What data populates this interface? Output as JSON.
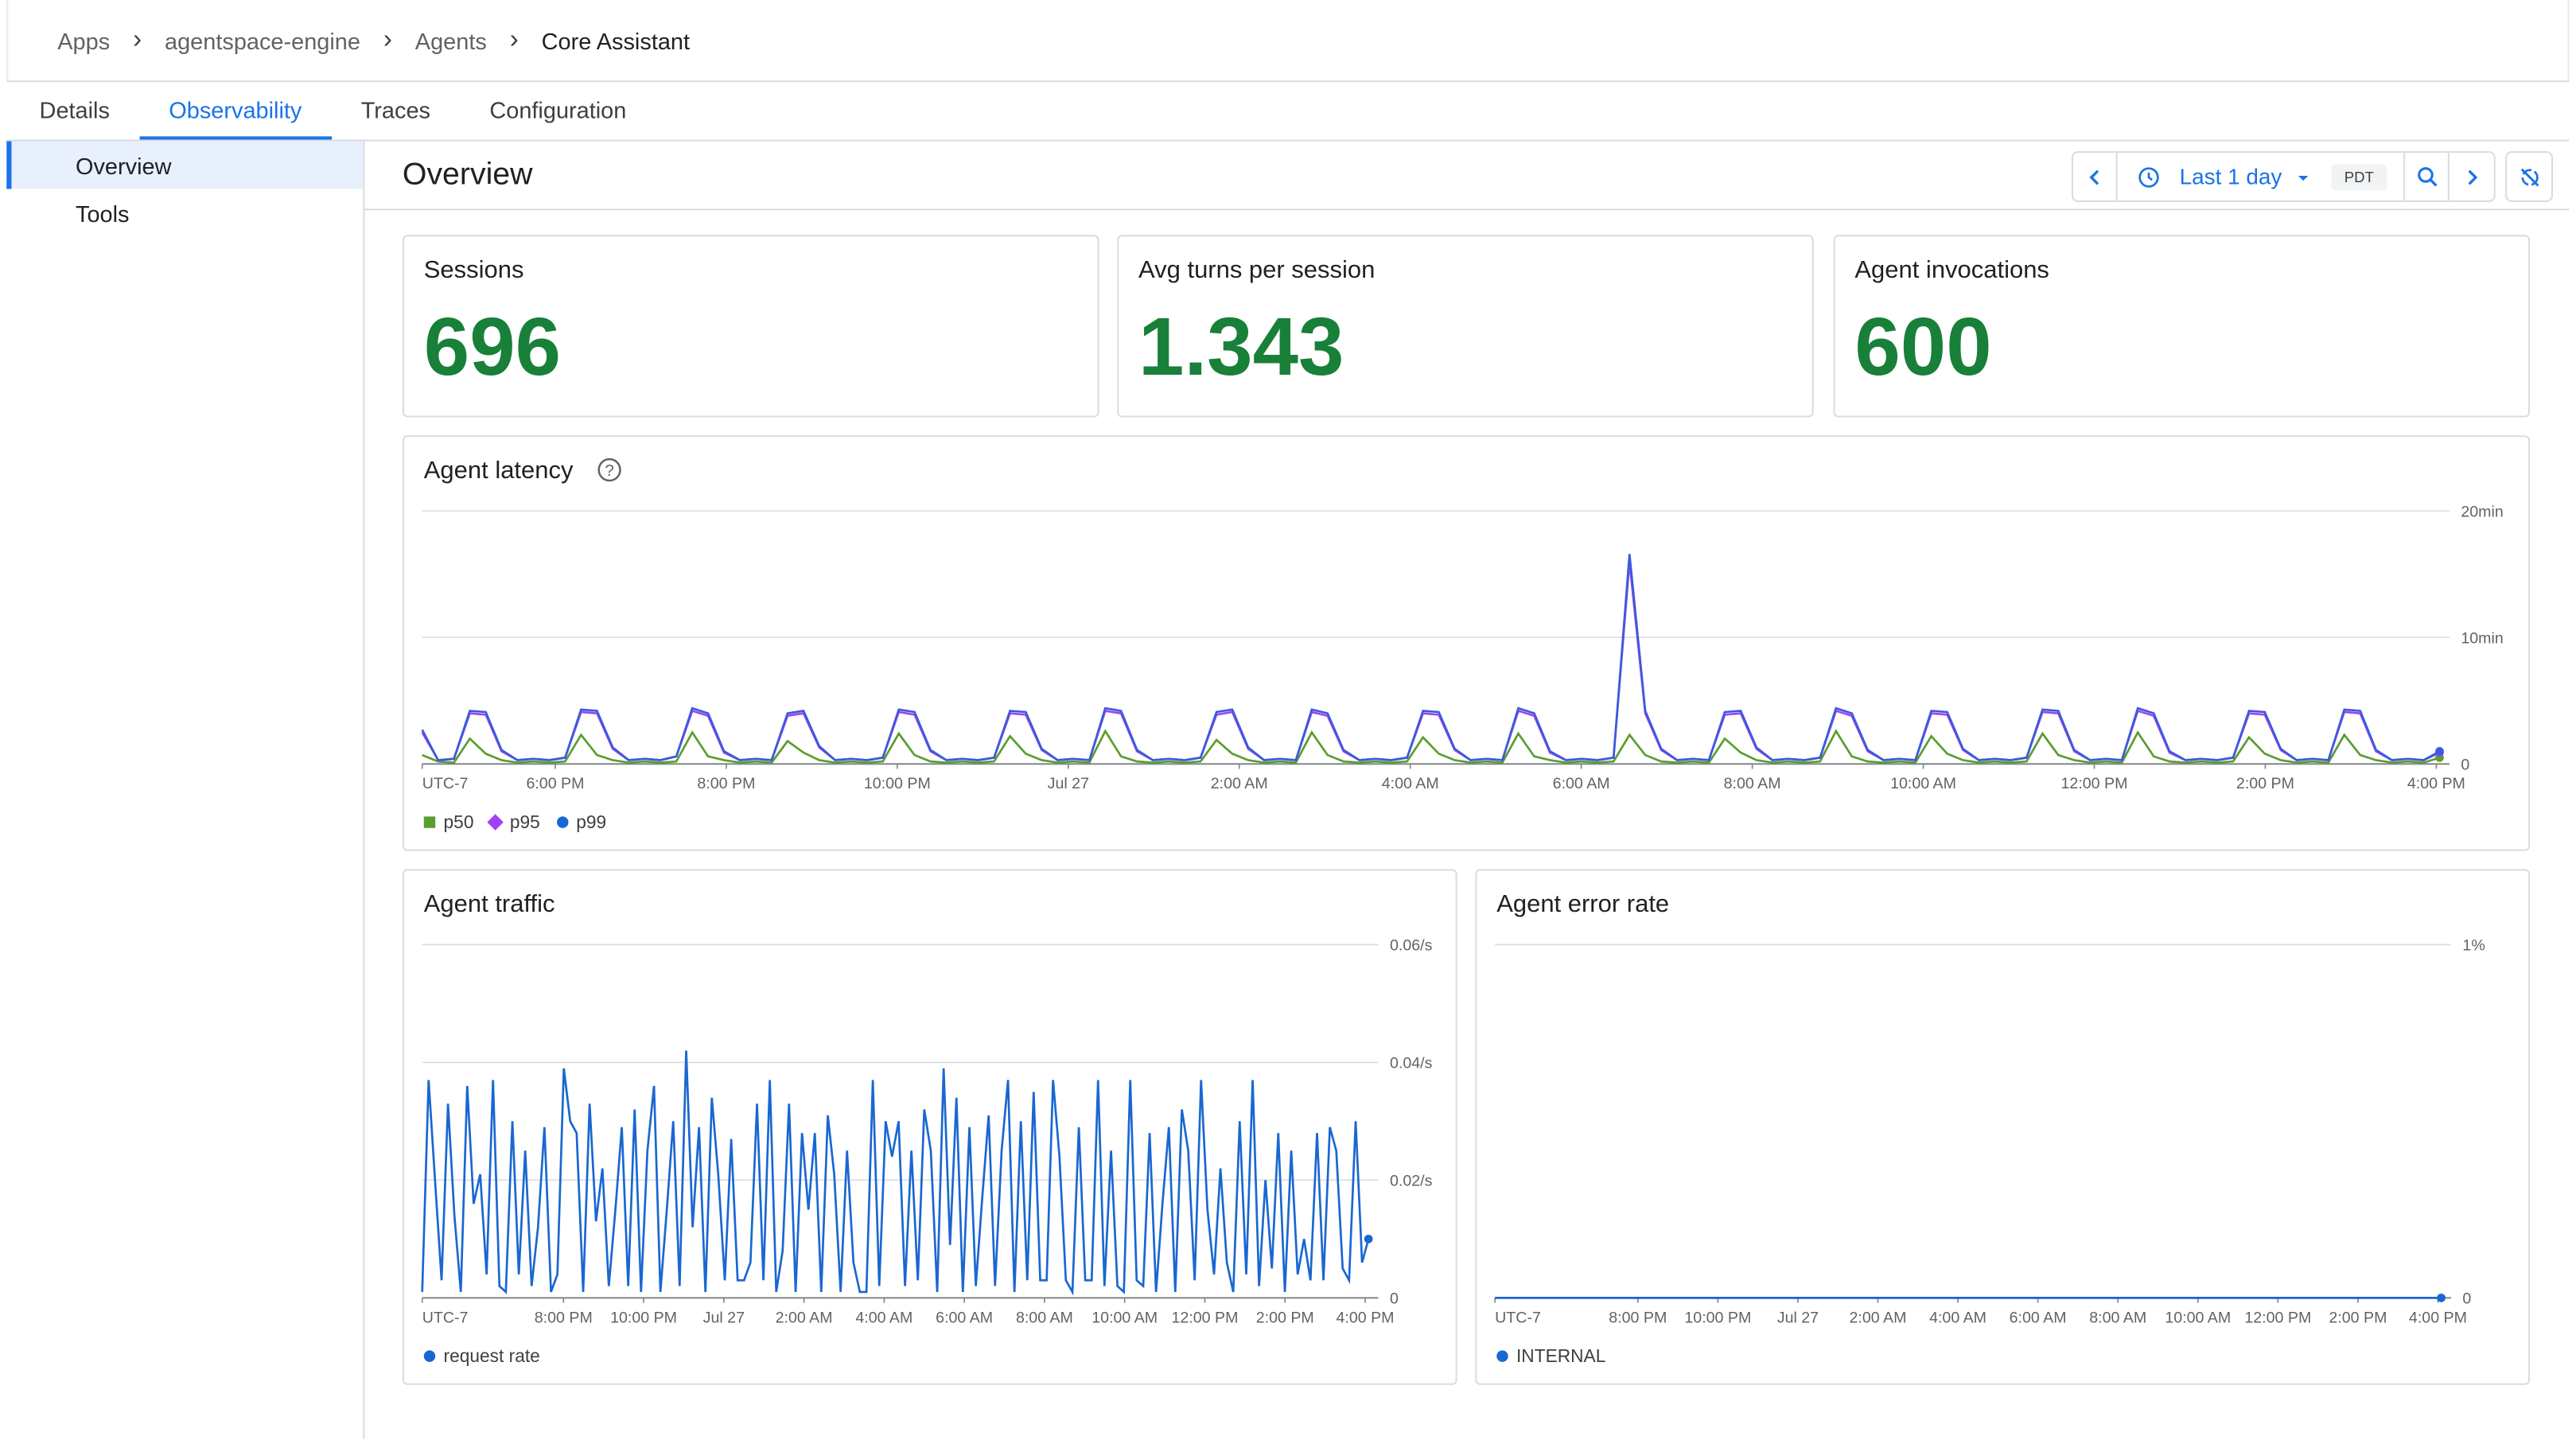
{
  "breadcrumb": [
    "Apps",
    "agentspace-engine",
    "Agents",
    "Core Assistant"
  ],
  "tabs": [
    "Details",
    "Observability",
    "Traces",
    "Configuration"
  ],
  "active_tab": "Observability",
  "sidebar": {
    "items": [
      "Overview",
      "Tools"
    ],
    "active": "Overview"
  },
  "page_title": "Overview",
  "toolbar": {
    "range_label": "Last 1 day",
    "timezone": "PDT",
    "icons": [
      "chevron-left-icon",
      "clock-icon",
      "caret-down-icon",
      "zoom-icon",
      "chevron-right-icon",
      "sync-off-icon"
    ]
  },
  "metrics": [
    {
      "label": "Sessions",
      "value": "696"
    },
    {
      "label": "Avg turns per session",
      "value": "1.343"
    },
    {
      "label": "Agent invocations",
      "value": "600"
    }
  ],
  "colors": {
    "accent": "#1a73e8",
    "metric_value": "#188038",
    "p50": "#5a9e2f",
    "p95": "#a142f4",
    "p99": "#3a5bdb",
    "traffic": "#1967d2"
  },
  "chart_data": [
    {
      "type": "line",
      "title": "Agent latency",
      "xticks": [
        "UTC-7",
        "6:00 PM",
        "8:00 PM",
        "10:00 PM",
        "Jul 27",
        "2:00 AM",
        "4:00 AM",
        "6:00 AM",
        "8:00 AM",
        "10:00 AM",
        "12:00 PM",
        "2:00 PM",
        "4:00 PM"
      ],
      "yticks": [
        "20min",
        "10min",
        "0"
      ],
      "ylim": [
        0,
        20
      ],
      "yunit": "min",
      "legend": "bottom-left",
      "grid": true,
      "series": [
        {
          "name": "p50",
          "values": [
            0.7,
            0.2,
            0.1,
            2.0,
            0.8,
            0.3,
            0.1,
            0.2,
            0.1,
            0.2,
            2.3,
            0.7,
            0.3,
            0.1,
            0.2,
            0.1,
            0.2,
            2.5,
            0.6,
            0.3,
            0.1,
            0.2,
            0.1,
            1.8,
            0.9,
            0.3,
            0.1,
            0.2,
            0.1,
            0.2,
            2.4,
            0.7,
            0.2,
            0.1,
            0.2,
            0.1,
            0.2,
            2.2,
            0.8,
            0.3,
            0.1,
            0.2,
            0.1,
            2.6,
            0.6,
            0.2,
            0.1,
            0.2,
            0.1,
            0.2,
            1.9,
            0.8,
            0.3,
            0.1,
            0.2,
            0.1,
            2.5,
            0.7,
            0.2,
            0.1,
            0.2,
            0.1,
            0.2,
            2.1,
            0.8,
            0.3,
            0.1,
            0.2,
            0.1,
            2.4,
            0.6,
            0.3,
            0.1,
            0.2,
            0.1,
            0.2,
            2.3,
            0.7,
            0.2,
            0.1,
            0.2,
            0.1,
            2.0,
            0.9,
            0.3,
            0.1,
            0.2,
            0.1,
            0.2,
            2.6,
            0.6,
            0.2,
            0.1,
            0.2,
            0.1,
            2.2,
            0.8,
            0.3,
            0.1,
            0.2,
            0.1,
            0.2,
            2.4,
            0.7,
            0.3,
            0.1,
            0.2,
            0.1,
            2.5,
            0.6,
            0.2,
            0.1,
            0.2,
            0.1,
            0.2,
            2.1,
            0.8,
            0.3,
            0.1,
            0.2,
            0.1,
            2.3,
            0.7,
            0.3,
            0.1,
            0.2,
            0.1,
            0.5
          ]
        },
        {
          "name": "p95",
          "values": [
            2.5,
            0.3,
            0.4,
            4.0,
            3.9,
            1.0,
            0.3,
            0.4,
            0.3,
            0.5,
            4.1,
            4.0,
            1.2,
            0.3,
            0.4,
            0.3,
            0.6,
            4.2,
            3.8,
            0.9,
            0.3,
            0.4,
            0.3,
            3.8,
            4.0,
            1.3,
            0.3,
            0.4,
            0.3,
            0.5,
            4.1,
            3.9,
            1.0,
            0.3,
            0.4,
            0.3,
            0.5,
            4.0,
            3.9,
            1.1,
            0.3,
            0.4,
            0.3,
            4.2,
            4.0,
            1.0,
            0.3,
            0.4,
            0.3,
            0.5,
            3.9,
            4.1,
            1.2,
            0.3,
            0.4,
            0.3,
            4.1,
            3.8,
            1.0,
            0.3,
            0.4,
            0.3,
            0.5,
            4.0,
            3.9,
            1.1,
            0.3,
            0.4,
            0.3,
            4.2,
            3.8,
            0.9,
            0.3,
            0.4,
            0.3,
            0.5,
            16.0,
            4.0,
            1.1,
            0.3,
            0.4,
            0.3,
            3.9,
            4.0,
            1.2,
            0.3,
            0.4,
            0.3,
            0.5,
            4.2,
            3.8,
            1.0,
            0.3,
            0.4,
            0.3,
            4.0,
            3.9,
            1.1,
            0.3,
            0.4,
            0.3,
            0.5,
            4.1,
            4.0,
            1.0,
            0.3,
            0.4,
            0.3,
            4.2,
            3.8,
            0.9,
            0.3,
            0.4,
            0.3,
            0.5,
            4.0,
            3.9,
            1.1,
            0.3,
            0.4,
            0.3,
            4.1,
            4.0,
            1.0,
            0.3,
            0.4,
            0.3,
            0.9
          ]
        },
        {
          "name": "p99",
          "values": [
            2.7,
            0.3,
            0.4,
            4.2,
            4.1,
            1.1,
            0.3,
            0.4,
            0.3,
            0.5,
            4.3,
            4.2,
            1.3,
            0.3,
            0.4,
            0.3,
            0.6,
            4.4,
            4.0,
            1.0,
            0.3,
            0.4,
            0.3,
            4.0,
            4.2,
            1.4,
            0.3,
            0.4,
            0.3,
            0.5,
            4.3,
            4.1,
            1.1,
            0.3,
            0.4,
            0.3,
            0.5,
            4.2,
            4.1,
            1.2,
            0.3,
            0.4,
            0.3,
            4.4,
            4.2,
            1.1,
            0.3,
            0.4,
            0.3,
            0.5,
            4.1,
            4.3,
            1.3,
            0.3,
            0.4,
            0.3,
            4.3,
            4.0,
            1.1,
            0.3,
            0.4,
            0.3,
            0.5,
            4.2,
            4.1,
            1.2,
            0.3,
            0.4,
            0.3,
            4.4,
            4.0,
            1.0,
            0.3,
            0.4,
            0.3,
            0.5,
            16.6,
            4.2,
            1.2,
            0.3,
            0.4,
            0.3,
            4.1,
            4.2,
            1.3,
            0.3,
            0.4,
            0.3,
            0.5,
            4.4,
            4.0,
            1.1,
            0.3,
            0.4,
            0.3,
            4.2,
            4.1,
            1.2,
            0.3,
            0.4,
            0.3,
            0.5,
            4.3,
            4.2,
            1.1,
            0.3,
            0.4,
            0.3,
            4.4,
            4.0,
            1.0,
            0.3,
            0.4,
            0.3,
            0.5,
            4.2,
            4.1,
            1.2,
            0.3,
            0.4,
            0.3,
            4.3,
            4.2,
            1.1,
            0.3,
            0.4,
            0.3,
            1.0
          ]
        }
      ]
    },
    {
      "type": "line",
      "title": "Agent traffic",
      "xticks": [
        "UTC-7",
        "8:00 PM",
        "10:00 PM",
        "Jul 27",
        "2:00 AM",
        "4:00 AM",
        "6:00 AM",
        "8:00 AM",
        "10:00 AM",
        "12:00 PM",
        "2:00 PM",
        "4:00 PM"
      ],
      "yticks": [
        "0.06/s",
        "0.04/s",
        "0.02/s",
        "0"
      ],
      "ylim": [
        0,
        0.06
      ],
      "legend": "bottom-left",
      "grid": true,
      "series": [
        {
          "name": "request rate",
          "values": [
            0.001,
            0.037,
            0.02,
            0.003,
            0.033,
            0.014,
            0.001,
            0.036,
            0.016,
            0.021,
            0.004,
            0.037,
            0.002,
            0.001,
            0.03,
            0.004,
            0.025,
            0.002,
            0.012,
            0.029,
            0.001,
            0.004,
            0.039,
            0.03,
            0.028,
            0.001,
            0.033,
            0.013,
            0.022,
            0.002,
            0.015,
            0.029,
            0.002,
            0.032,
            0.001,
            0.025,
            0.036,
            0.001,
            0.015,
            0.03,
            0.002,
            0.042,
            0.012,
            0.029,
            0.001,
            0.034,
            0.021,
            0.003,
            0.027,
            0.003,
            0.003,
            0.006,
            0.033,
            0.003,
            0.037,
            0.001,
            0.008,
            0.033,
            0.001,
            0.028,
            0.015,
            0.028,
            0.001,
            0.031,
            0.021,
            0.001,
            0.025,
            0.006,
            0.001,
            0.001,
            0.037,
            0.002,
            0.03,
            0.024,
            0.03,
            0.002,
            0.025,
            0.003,
            0.032,
            0.025,
            0.001,
            0.039,
            0.009,
            0.034,
            0.001,
            0.029,
            0.002,
            0.017,
            0.031,
            0.002,
            0.025,
            0.037,
            0.001,
            0.03,
            0.003,
            0.035,
            0.003,
            0.003,
            0.037,
            0.024,
            0.003,
            0.001,
            0.029,
            0.003,
            0.003,
            0.037,
            0.002,
            0.025,
            0.002,
            0.001,
            0.037,
            0.003,
            0.002,
            0.028,
            0.001,
            0.016,
            0.029,
            0.001,
            0.032,
            0.025,
            0.003,
            0.037,
            0.015,
            0.004,
            0.022,
            0.006,
            0.001,
            0.03,
            0.004,
            0.037,
            0.002,
            0.02,
            0.005,
            0.028,
            0.001,
            0.025,
            0.004,
            0.01,
            0.003,
            0.028,
            0.003,
            0.029,
            0.025,
            0.005,
            0.003,
            0.03,
            0.006,
            0.01
          ]
        }
      ]
    },
    {
      "type": "line",
      "title": "Agent error rate",
      "xticks": [
        "UTC-7",
        "8:00 PM",
        "10:00 PM",
        "Jul 27",
        "2:00 AM",
        "4:00 AM",
        "6:00 AM",
        "8:00 AM",
        "10:00 AM",
        "12:00 PM",
        "2:00 PM",
        "4:00 PM"
      ],
      "yticks": [
        "1%",
        "0"
      ],
      "ylim": [
        0,
        1
      ],
      "legend": "bottom-left",
      "grid": true,
      "series": [
        {
          "name": "INTERNAL",
          "values": [
            0,
            0,
            0,
            0,
            0,
            0,
            0,
            0,
            0,
            0,
            0,
            0,
            0,
            0,
            0,
            0,
            0,
            0,
            0,
            0,
            0,
            0,
            0,
            0,
            0
          ]
        }
      ]
    }
  ]
}
